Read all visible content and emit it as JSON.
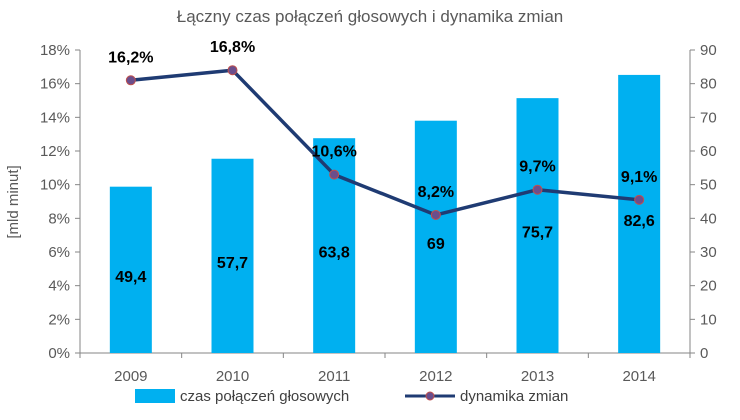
{
  "chart_data": {
    "type": "bar+line",
    "title": "Łączny czas połączeń głosowych i dynamika zmian",
    "categories": [
      "2009",
      "2010",
      "2011",
      "2012",
      "2013",
      "2014"
    ],
    "ylabel_left": "[mld minut]",
    "ylabel_right": "",
    "left_axis": {
      "range": [
        0,
        18
      ],
      "ticks": [
        "0%",
        "2%",
        "4%",
        "6%",
        "8%",
        "10%",
        "12%",
        "14%",
        "16%",
        "18%"
      ]
    },
    "right_axis": {
      "range": [
        0,
        90
      ],
      "ticks": [
        "0",
        "10",
        "20",
        "30",
        "40",
        "50",
        "60",
        "70",
        "80",
        "90"
      ]
    },
    "series": [
      {
        "name": "czas połączeń głosowych",
        "type": "bar",
        "axis": "right",
        "color": "#00b0f0",
        "values": [
          49.4,
          57.7,
          63.8,
          69,
          75.7,
          82.6
        ],
        "labels": [
          "49,4",
          "57,7",
          "63,8",
          "69",
          "75,7",
          "82,6"
        ]
      },
      {
        "name": "dynamika zmian",
        "type": "line",
        "axis": "left",
        "color": "#1f3b73",
        "marker_color": "#6b4e8c",
        "values": [
          16.2,
          16.8,
          10.6,
          8.2,
          9.7,
          9.1
        ],
        "labels": [
          "16,2%",
          "16,8%",
          "10,6%",
          "8,2%",
          "9,7%",
          "9,1%"
        ]
      }
    ],
    "legend": {
      "position": "bottom"
    },
    "grid": false
  }
}
